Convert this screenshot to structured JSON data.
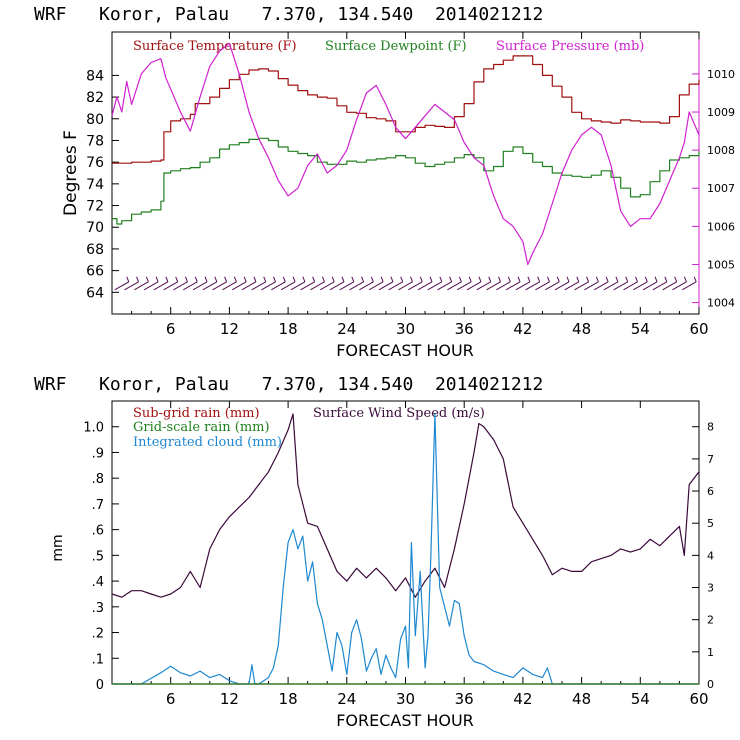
{
  "colors": {
    "temperature": "#a01010",
    "dewpoint": "#208020",
    "pressure": "#d020d0",
    "barbs": "#501050",
    "subgrid_rain": "#a01010",
    "gridscale_rain": "#208020",
    "cloud": "#1e88d0",
    "wind": "#3a0a3a",
    "axis": "#000000"
  },
  "chart_data": [
    {
      "type": "line",
      "title": "WRF   Koror, Palau   7.370, 134.540  2014021212",
      "xlabel": "FORECAST HOUR",
      "ylabel": "Degrees F",
      "xlim": [
        0,
        60
      ],
      "ylim": [
        62,
        88
      ],
      "y2lim": [
        1003.7,
        1011.1
      ],
      "x_ticks": [
        "6",
        "12",
        "18",
        "24",
        "30",
        "36",
        "42",
        "48",
        "54",
        "60"
      ],
      "y_ticks": [
        "64",
        "66",
        "68",
        "70",
        "72",
        "74",
        "76",
        "78",
        "80",
        "82",
        "84"
      ],
      "y2_ticks": [
        "1004",
        "1005",
        "1006",
        "1007",
        "1008",
        "1009",
        "1010"
      ],
      "legend": [
        "Surface Temperature (F)",
        "Surface Dewpoint (F)",
        "Surface Pressure (mb)"
      ],
      "series": [
        {
          "name": "Surface Temperature (F)",
          "x": [
            0,
            2,
            4,
            5,
            5.3,
            6,
            7,
            8,
            8.5,
            10,
            11,
            12,
            13,
            14,
            15,
            16,
            17,
            18,
            19,
            20,
            21,
            22,
            23,
            24,
            25,
            26,
            27,
            28,
            29,
            30,
            31,
            32,
            33,
            34,
            35,
            36,
            37,
            38,
            39,
            40,
            41,
            42,
            43,
            44,
            45,
            46,
            47,
            48,
            49,
            50,
            51,
            52,
            53,
            54,
            55,
            56,
            57,
            58,
            59,
            60
          ],
          "values": [
            75.9,
            76.0,
            76.1,
            76.2,
            78.8,
            79.8,
            80.0,
            80.4,
            81.4,
            82.0,
            82.8,
            83.6,
            84.1,
            84.5,
            84.6,
            84.4,
            83.7,
            83.1,
            82.6,
            82.2,
            82.0,
            81.9,
            81.2,
            80.6,
            80.5,
            80.1,
            80.0,
            79.8,
            78.8,
            78.8,
            79.2,
            79.4,
            79.3,
            79.2,
            80.2,
            81.4,
            83.4,
            84.6,
            85.0,
            85.4,
            85.8,
            85.8,
            85.0,
            84.0,
            83.0,
            82.0,
            80.6,
            80.0,
            79.8,
            79.7,
            79.6,
            79.9,
            79.8,
            79.7,
            79.7,
            79.6,
            80.2,
            82.2,
            83.2,
            83.6
          ]
        },
        {
          "name": "Surface Dewpoint (F)",
          "x": [
            0,
            0.5,
            1,
            2,
            3,
            4,
            5,
            5.3,
            6,
            7,
            8,
            9,
            10,
            11,
            12,
            13,
            14,
            15,
            16,
            17,
            18,
            19,
            20,
            21,
            22,
            23,
            24,
            25,
            26,
            27,
            28,
            29,
            30,
            31,
            32,
            33,
            34,
            35,
            36,
            37,
            38,
            39,
            40,
            41,
            42,
            43,
            44,
            45,
            46,
            47,
            48,
            49,
            50,
            51,
            52,
            53,
            54,
            55,
            56,
            57,
            58,
            59,
            60
          ],
          "values": [
            70.8,
            70.3,
            70.6,
            71.2,
            71.4,
            71.6,
            72.4,
            75.0,
            75.2,
            75.4,
            75.5,
            76.0,
            76.4,
            77.2,
            77.6,
            77.8,
            78.1,
            78.2,
            78.0,
            77.4,
            77.0,
            76.8,
            76.6,
            76.0,
            75.8,
            75.8,
            76.1,
            76.0,
            76.2,
            76.3,
            76.4,
            76.6,
            76.4,
            75.9,
            75.6,
            75.8,
            76.0,
            76.4,
            76.7,
            76.4,
            75.2,
            75.6,
            77.0,
            77.4,
            76.8,
            76.0,
            75.6,
            75.0,
            74.8,
            74.7,
            74.6,
            74.8,
            75.2,
            74.6,
            73.6,
            72.8,
            73.0,
            74.2,
            75.2,
            76.2,
            76.4,
            76.6,
            77.0
          ]
        },
        {
          "name": "Surface Pressure (mb)",
          "x": [
            0,
            0.5,
            1,
            1.5,
            2,
            3,
            4,
            5,
            5.5,
            6,
            7,
            8,
            9,
            10,
            11,
            12,
            13,
            14,
            15,
            16,
            17,
            18,
            19,
            20,
            21,
            22,
            23,
            24,
            25,
            26,
            27,
            28,
            29,
            30,
            31,
            32,
            33,
            34,
            35,
            36,
            37,
            38,
            39,
            40,
            41,
            42,
            42.5,
            43,
            44,
            45,
            46,
            47,
            48,
            49,
            50,
            51,
            52,
            53,
            54,
            55,
            56,
            57,
            58,
            58.5,
            59,
            60
          ],
          "values": [
            1008.9,
            1009.4,
            1009.0,
            1009.8,
            1009.2,
            1010.0,
            1010.3,
            1010.4,
            1009.9,
            1009.6,
            1009.0,
            1008.5,
            1009.4,
            1010.2,
            1010.6,
            1010.8,
            1010.0,
            1009.0,
            1008.3,
            1007.8,
            1007.2,
            1006.8,
            1007.0,
            1007.6,
            1007.9,
            1007.4,
            1007.6,
            1008.0,
            1008.8,
            1009.5,
            1009.7,
            1009.2,
            1008.6,
            1008.3,
            1008.6,
            1008.9,
            1009.2,
            1009.0,
            1008.8,
            1008.2,
            1007.8,
            1007.6,
            1006.8,
            1006.2,
            1006.0,
            1005.6,
            1005.0,
            1005.3,
            1005.8,
            1006.6,
            1007.4,
            1008.0,
            1008.4,
            1008.6,
            1008.4,
            1007.6,
            1006.4,
            1006.0,
            1006.2,
            1006.2,
            1006.6,
            1007.2,
            1007.8,
            1008.2,
            1009.0,
            1008.4
          ]
        }
      ],
      "wind_barbs_y": 64.6
    },
    {
      "type": "line",
      "title": "WRF   Koror, Palau   7.370, 134.540  2014021212",
      "xlabel": "FORECAST HOUR",
      "ylabel": "mm",
      "xlim": [
        0,
        60
      ],
      "ylim": [
        0,
        1.1
      ],
      "y2lim": [
        0,
        8.8
      ],
      "x_ticks": [
        "6",
        "12",
        "18",
        "24",
        "30",
        "36",
        "42",
        "48",
        "54",
        "60"
      ],
      "y_ticks": [
        "0",
        ".1",
        ".2",
        ".3",
        ".4",
        ".5",
        ".6",
        ".7",
        ".8",
        ".9",
        "1.0"
      ],
      "y2_ticks": [
        "0",
        "1",
        "2",
        "3",
        "4",
        "5",
        "6",
        "7",
        "8"
      ],
      "legend": [
        "Sub-grid rain (mm)",
        "Grid-scale rain (mm)",
        "Integrated cloud (mm)",
        "Surface Wind Speed (m/s)"
      ],
      "series": [
        {
          "name": "Surface Wind Speed (m/s)",
          "x": [
            0,
            1,
            2,
            3,
            4,
            5,
            6,
            7,
            8,
            9,
            10,
            11,
            12,
            13,
            14,
            15,
            16,
            17,
            18,
            18.5,
            19,
            20,
            21,
            22,
            23,
            24,
            25,
            26,
            27,
            28,
            29,
            30,
            31,
            32,
            33,
            34,
            35,
            36,
            37,
            37.5,
            38,
            39,
            40,
            41,
            42,
            43,
            44,
            45,
            46,
            47,
            48,
            49,
            50,
            51,
            52,
            53,
            54,
            55,
            56,
            57,
            58,
            58.5,
            59,
            60
          ],
          "values": [
            2.8,
            2.7,
            2.9,
            2.9,
            2.8,
            2.7,
            2.8,
            3.0,
            3.5,
            3.0,
            4.2,
            4.8,
            5.2,
            5.5,
            5.8,
            6.2,
            6.6,
            7.2,
            7.9,
            8.4,
            6.2,
            5.0,
            4.9,
            4.2,
            3.5,
            3.2,
            3.6,
            3.3,
            3.6,
            3.3,
            2.9,
            3.3,
            2.7,
            3.2,
            3.6,
            3.0,
            4.2,
            5.6,
            7.2,
            8.1,
            8.0,
            7.6,
            7.0,
            5.5,
            5.0,
            4.5,
            4.0,
            3.4,
            3.6,
            3.5,
            3.5,
            3.8,
            3.9,
            4.0,
            4.2,
            4.1,
            4.2,
            4.5,
            4.3,
            4.6,
            4.9,
            4.0,
            6.2,
            6.6
          ]
        },
        {
          "name": "Integrated cloud (mm)",
          "x": [
            0,
            3,
            5,
            6,
            7,
            8,
            9,
            10,
            11,
            12,
            13,
            14,
            14.3,
            14.6,
            15,
            16,
            16.5,
            17,
            17.5,
            18,
            18.5,
            19,
            19.5,
            20,
            20.5,
            21,
            21.5,
            22,
            22.5,
            23,
            23.5,
            24,
            24.5,
            25,
            25.5,
            26,
            26.5,
            27,
            27.5,
            28,
            28.5,
            29,
            29.5,
            30,
            30.3,
            30.6,
            31,
            31.5,
            32,
            32.3,
            32.6,
            33,
            33.5,
            34,
            34.5,
            35,
            35.5,
            36,
            36.5,
            37,
            38,
            39,
            40,
            41,
            42,
            43,
            44,
            44.5,
            45,
            60
          ],
          "values": [
            0,
            0,
            0.35,
            0.55,
            0.35,
            0.25,
            0.4,
            0.2,
            0.3,
            0.1,
            0,
            0,
            0.6,
            0,
            0,
            0.2,
            0.5,
            1.2,
            3.0,
            4.4,
            4.8,
            4.2,
            4.6,
            3.2,
            3.8,
            2.5,
            2.0,
            1.2,
            0.4,
            1.6,
            1.2,
            0.3,
            1.6,
            2.0,
            1.4,
            0.4,
            0.8,
            1.1,
            0.3,
            0.9,
            0.5,
            0.2,
            1.4,
            1.8,
            0.5,
            4.4,
            1.5,
            3.5,
            0.5,
            1.5,
            4.0,
            8.4,
            3.0,
            2.4,
            1.8,
            2.6,
            2.5,
            1.5,
            0.9,
            0.7,
            0.6,
            0.4,
            0.3,
            0.2,
            0.5,
            0.3,
            0.2,
            0.5,
            0,
            0
          ]
        },
        {
          "name": "Sub-grid rain (mm)",
          "x": [
            0,
            60
          ],
          "values": [
            0,
            0
          ]
        },
        {
          "name": "Grid-scale rain (mm)",
          "x": [
            0,
            60
          ],
          "values": [
            0,
            0
          ]
        }
      ]
    }
  ]
}
